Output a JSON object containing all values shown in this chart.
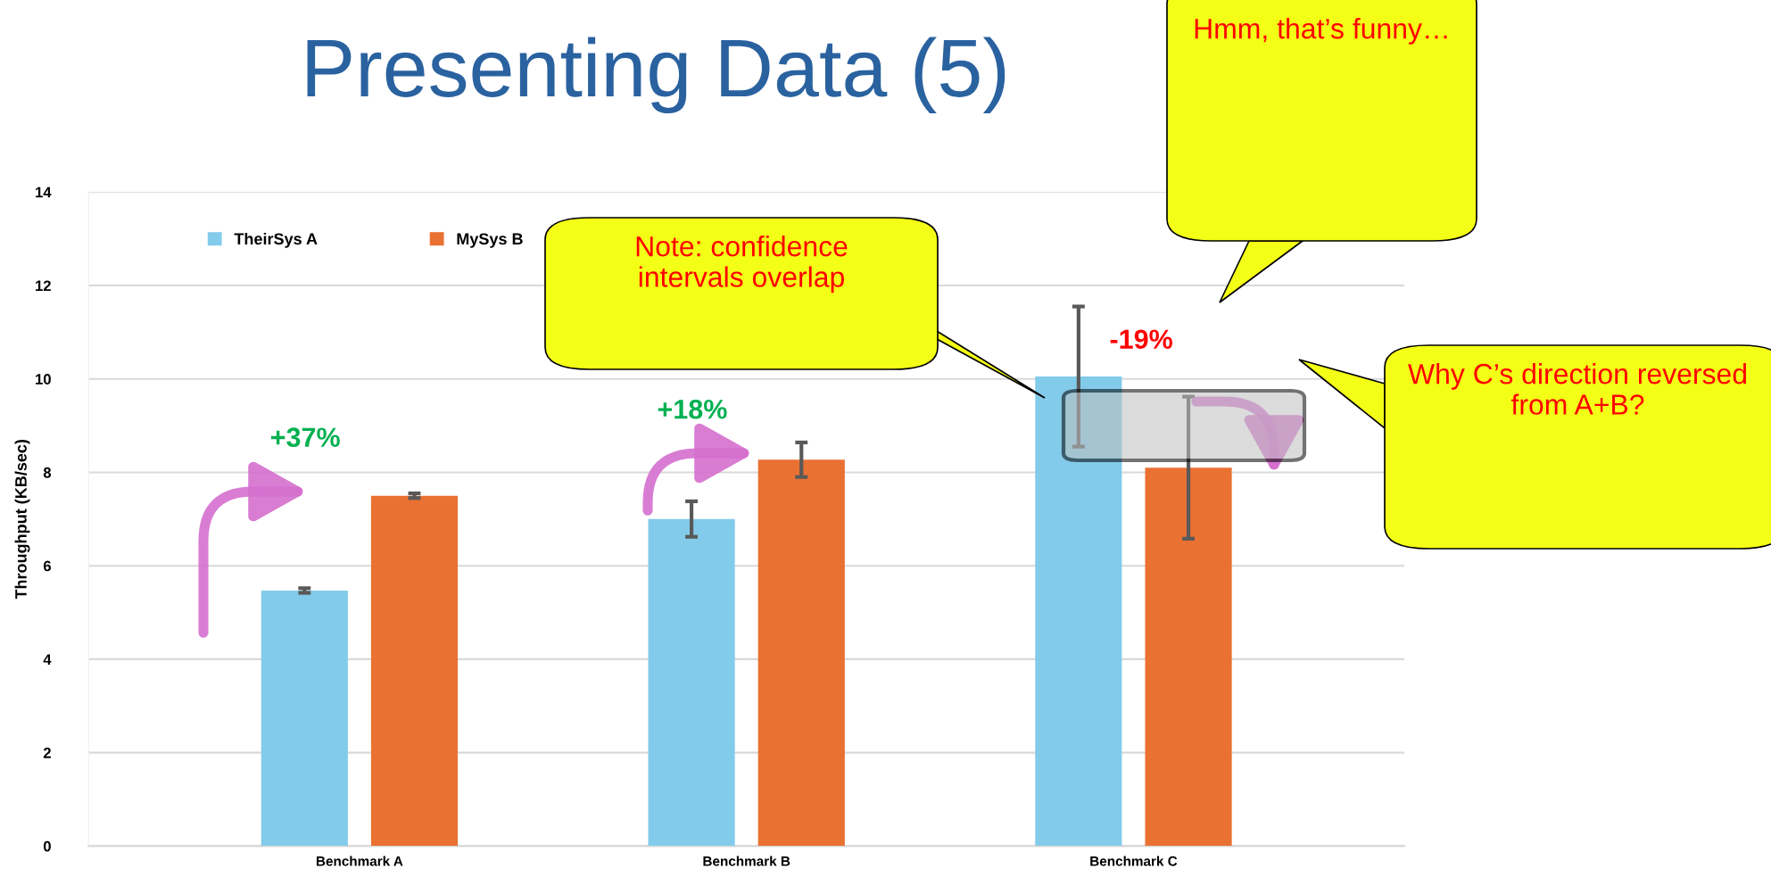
{
  "chart_data": {
    "type": "bar",
    "title": "Presenting Data (5)",
    "ylabel": "Throughput (KB/sec)",
    "categories": [
      "Benchmark A",
      "Benchmark B",
      "Benchmark C"
    ],
    "series": [
      {
        "name": "TheirSys A",
        "color": "#83cbea",
        "values": [
          5.47,
          7.0,
          10.05
        ],
        "errors": [
          0.05,
          0.38,
          1.5
        ]
      },
      {
        "name": "MySys B",
        "color": "#e97132",
        "values": [
          7.5,
          8.27,
          8.1
        ],
        "errors": [
          0.05,
          0.37,
          1.52
        ]
      }
    ],
    "ylim": [
      0,
      14
    ],
    "yticks": [
      0,
      2,
      4,
      6,
      8,
      10,
      12,
      14
    ],
    "grid": "y",
    "legend": "top left",
    "annotations": [
      "+37%",
      "+18%",
      "-19%",
      "Note: confidence intervals overlap",
      "Hmm, that’s funny…",
      "Why C’s direction reversed from A+B?"
    ]
  }
}
